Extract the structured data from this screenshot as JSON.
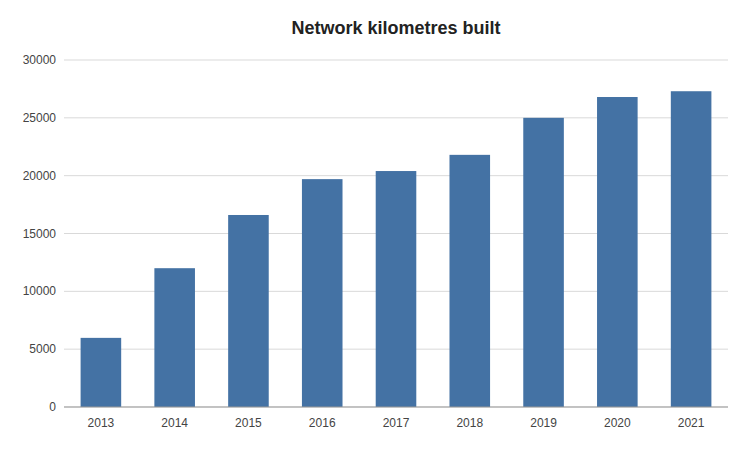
{
  "chart_data": {
    "type": "bar",
    "title": "Network kilometres built",
    "categories": [
      "2013",
      "2014",
      "2015",
      "2016",
      "2017",
      "2018",
      "2019",
      "2020",
      "2021"
    ],
    "values": [
      5977,
      12000,
      16600,
      19700,
      20400,
      21800,
      25000,
      26800,
      27300
    ],
    "color": "#4472a4",
    "ylim": [
      0,
      30000
    ],
    "yticks": [
      0,
      5000,
      10000,
      15000,
      20000,
      25000,
      30000
    ],
    "grid": true
  }
}
